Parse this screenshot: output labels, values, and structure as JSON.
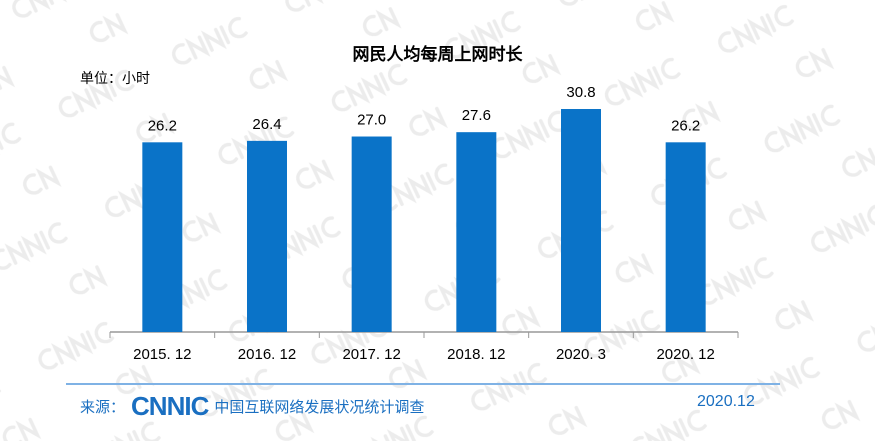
{
  "chart_data": {
    "type": "bar",
    "title": "网民人均每周上网时长",
    "ylabel": "单位：小时",
    "categories": [
      "2015. 12",
      "2016. 12",
      "2017. 12",
      "2018. 12",
      "2020. 3",
      "2020. 12"
    ],
    "values": [
      26.2,
      26.4,
      27.0,
      27.6,
      30.8,
      26.2
    ],
    "value_labels": [
      "26.2",
      "26.4",
      "27.0",
      "27.6",
      "30.8",
      "26.2"
    ],
    "ylim": [
      0,
      31
    ],
    "grid": false,
    "bar_color": "#0a73c8"
  },
  "footer": {
    "source_label": "来源：",
    "logo": "CNNIC",
    "source_name": "中国互联网络发展状况统计调查",
    "date": "2020.12",
    "color": "#1a6fc1"
  },
  "watermark": "CNNIC"
}
